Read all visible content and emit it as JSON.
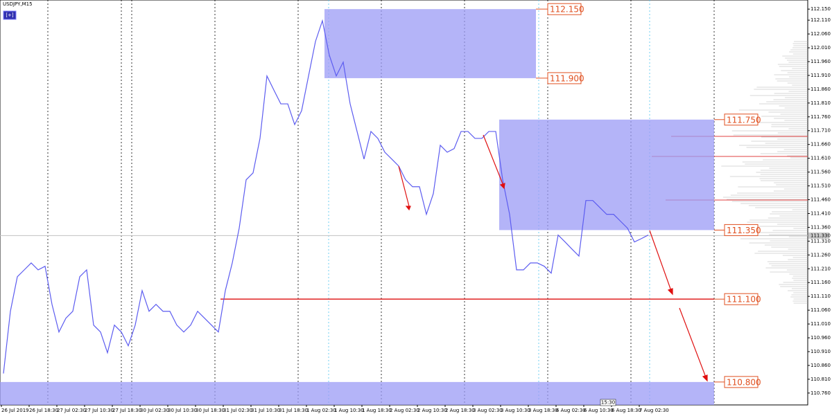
{
  "chart_data": {
    "type": "line",
    "title": "USDJPY,M15",
    "button": "[+]",
    "time_marker": "15:30",
    "time_labels": [
      "26 Jul 2019",
      "26 Jul 18:30",
      "27 Jul 02:30",
      "27 Jul 10:30",
      "27 Jul 18:30",
      "30 Jul 02:30",
      "30 Jul 10:30",
      "30 Jul 18:30",
      "31 Jul 02:30",
      "31 Jul 10:30",
      "31 Jul 18:30",
      "1 Aug 02:30",
      "1 Aug 10:30",
      "1 Aug 18:30",
      "2 Aug 02:30",
      "2 Aug 10:30",
      "2 Aug 18:30",
      "3 Aug 02:30",
      "3 Aug 10:30",
      "3 Aug 18:30",
      "6 Aug 02:30",
      "6 Aug 10:30",
      "6 Aug 18:30",
      "7 Aug 02:30"
    ],
    "series": [
      {
        "color": "#5c5cf0",
        "values": [
          110.831,
          111.056,
          111.181,
          111.206,
          111.231,
          111.206,
          111.219,
          111.081,
          110.981,
          111.031,
          111.056,
          111.181,
          111.206,
          111.006,
          110.981,
          110.906,
          111.006,
          110.981,
          110.931,
          111.006,
          111.131,
          111.056,
          111.081,
          111.056,
          111.056,
          111.006,
          110.981,
          111.006,
          111.056,
          111.031,
          111.006,
          110.981,
          111.131,
          111.231,
          111.357,
          111.532,
          111.557,
          111.682,
          111.908,
          111.857,
          111.807,
          111.807,
          111.732,
          111.782,
          111.908,
          112.033,
          112.108,
          111.983,
          111.908,
          111.958,
          111.807,
          111.707,
          111.607,
          111.707,
          111.682,
          111.632,
          111.607,
          111.582,
          111.532,
          111.507,
          111.507,
          111.407,
          111.482,
          111.657,
          111.632,
          111.645,
          111.707,
          111.707,
          111.682,
          111.682,
          111.707,
          111.707,
          111.532,
          111.407,
          111.206,
          111.206,
          111.231,
          111.231,
          111.219,
          111.194,
          111.332,
          111.307,
          111.281,
          111.256,
          111.457,
          111.457,
          111.432,
          111.407,
          111.407,
          111.382,
          111.357,
          111.307,
          111.319,
          111.332
        ]
      }
    ],
    "ylim": [
      110.717,
      112.183
    ],
    "yticks": [
      {
        "value": 112.15,
        "label": "112.150"
      },
      {
        "value": 112.11,
        "label": "112.110"
      },
      {
        "value": 112.06,
        "label": "112.060"
      },
      {
        "value": 112.01,
        "label": "112.010"
      },
      {
        "value": 111.96,
        "label": "111.960"
      },
      {
        "value": 111.91,
        "label": "111.910"
      },
      {
        "value": 111.86,
        "label": "111.860"
      },
      {
        "value": 111.81,
        "label": "111.810"
      },
      {
        "value": 111.76,
        "label": "111.760"
      },
      {
        "value": 111.71,
        "label": "111.710"
      },
      {
        "value": 111.66,
        "label": "111.660"
      },
      {
        "value": 111.61,
        "label": "111.610"
      },
      {
        "value": 111.56,
        "label": "111.560"
      },
      {
        "value": 111.51,
        "label": "111.510"
      },
      {
        "value": 111.46,
        "label": "111.460"
      },
      {
        "value": 111.41,
        "label": "111.410"
      },
      {
        "value": 111.36,
        "label": "111.360"
      },
      {
        "value": 111.31,
        "label": "111.310"
      },
      {
        "value": 111.26,
        "label": "111.260"
      },
      {
        "value": 111.21,
        "label": "111.210"
      },
      {
        "value": 111.16,
        "label": "111.160"
      },
      {
        "value": 111.11,
        "label": "111.110"
      },
      {
        "value": 111.06,
        "label": "111.060"
      },
      {
        "value": 111.01,
        "label": "111.010"
      },
      {
        "value": 110.96,
        "label": "110.960"
      },
      {
        "value": 110.91,
        "label": "110.910"
      },
      {
        "value": 110.86,
        "label": "110.860"
      },
      {
        "value": 110.81,
        "label": "110.810"
      },
      {
        "value": 110.76,
        "label": "110.760"
      }
    ],
    "zones": [
      {
        "top": {
          "value": 112.15,
          "label": "112.150"
        },
        "bottom": {
          "value": 111.9,
          "label": "111.900"
        }
      },
      {
        "top": {
          "value": 111.75,
          "label": "111.750"
        },
        "bottom": {
          "value": 111.35,
          "label": "111.350"
        }
      },
      {
        "top": {
          "value": 110.8,
          "label": "110.800"
        }
      }
    ],
    "levels": [
      {
        "value": 111.1,
        "label": "111.100"
      }
    ],
    "current_price": {
      "value": 111.33,
      "label": "111.330"
    }
  }
}
